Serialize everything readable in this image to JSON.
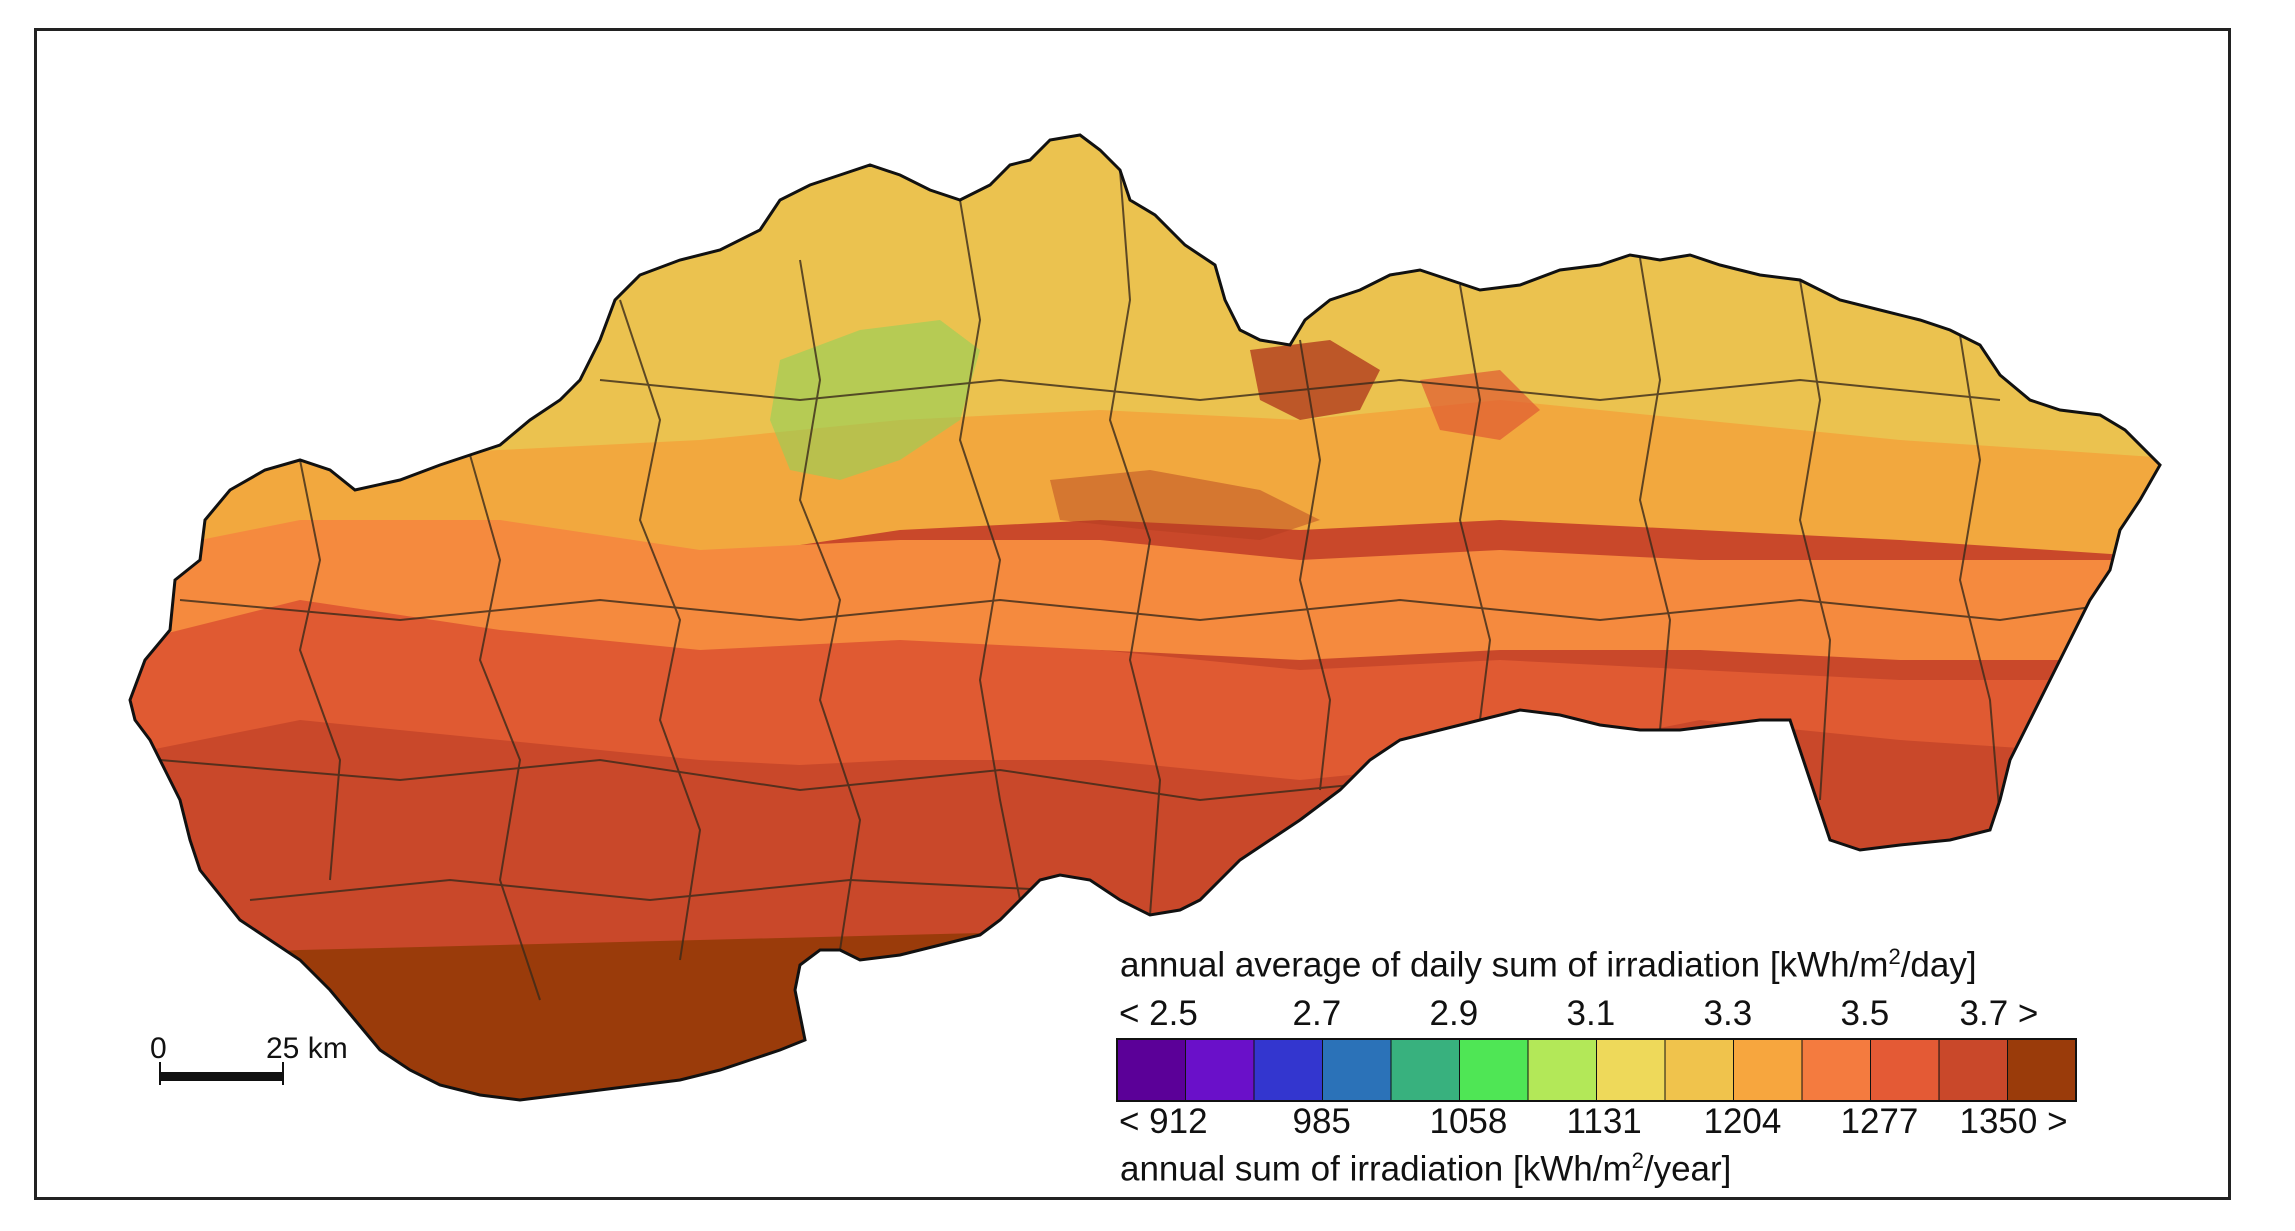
{
  "legend": {
    "daily_title_prefix": "annual average of daily sum of irradiation [kWh/m",
    "daily_title_sup": "2",
    "daily_title_suffix": "/day]",
    "annual_title_prefix": "annual sum of irradiation [kWh/m",
    "annual_title_sup": "2",
    "annual_title_suffix": "/year]",
    "daily_ticks": [
      "< 2.5",
      "2.7",
      "2.9",
      "3.1",
      "3.3",
      "3.5",
      "3.7 >"
    ],
    "annual_ticks": [
      "< 912",
      "985",
      "1058",
      "1131",
      "1204",
      "1277",
      "1350 >"
    ],
    "colors": [
      "#5b0098",
      "#6a10c9",
      "#3336cf",
      "#2b72b8",
      "#38b17e",
      "#4fe655",
      "#b3e858",
      "#eed95a",
      "#f0c34c",
      "#f7a63e",
      "#f47b3f",
      "#e45a35",
      "#c9482a",
      "#9a3b0a"
    ]
  },
  "scale_bar": {
    "start_label": "0",
    "end_label": "25 km"
  },
  "map": {
    "region_colors": {
      "north": "#ebc24f",
      "north_mid": "#f2a83e",
      "center": "#f58a3e",
      "south_mid": "#e05a32",
      "south": "#c9482a",
      "far_south": "#9a3b0a",
      "mountain_green": "#8ad45a",
      "mountain_dark": "#b23c1e"
    }
  }
}
